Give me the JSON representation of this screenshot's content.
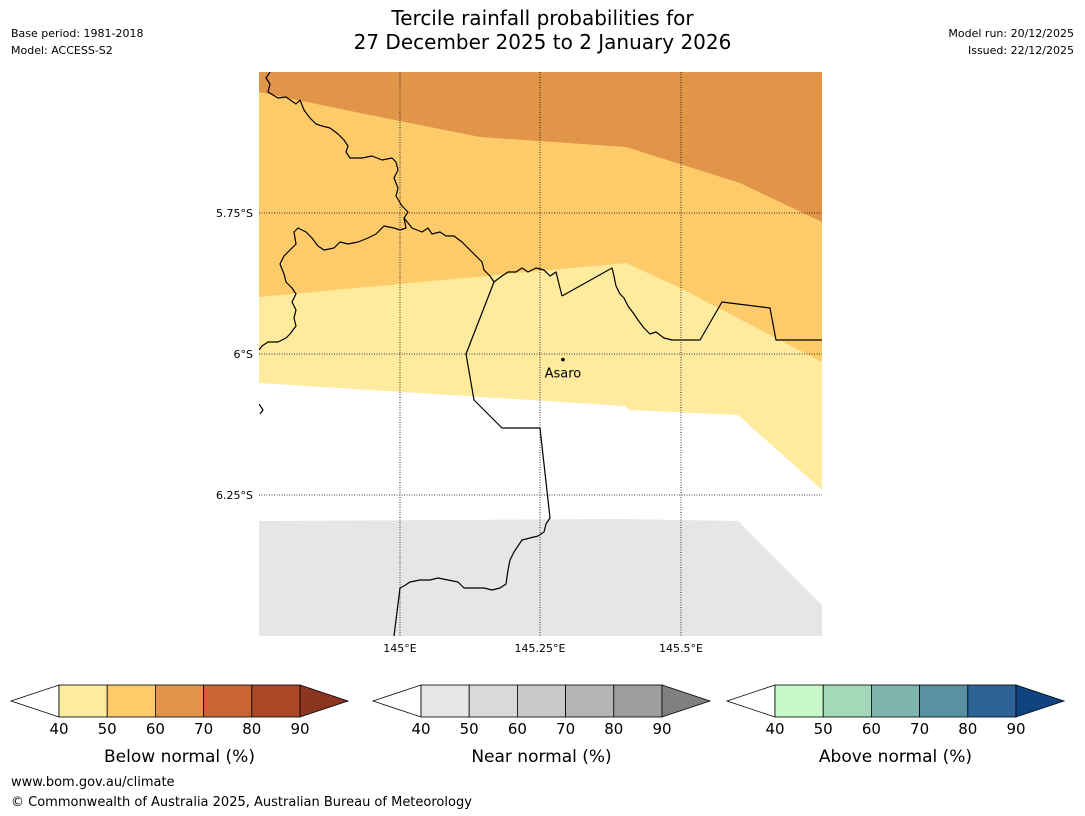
{
  "header": {
    "base_period": "Base period: 1981-2018",
    "model": "Model: ACCESS-S2",
    "title_line1": "Tercile rainfall probabilities for",
    "title_line2": "27 December 2025 to 2 January 2026",
    "model_run": "Model run: 20/12/2025",
    "issued": "Issued: 22/12/2025"
  },
  "map": {
    "lat_labels": [
      "5.75°S",
      "6°S",
      "6.25°S"
    ],
    "lon_labels": [
      "145°E",
      "145.25°E",
      "145.5°E"
    ],
    "place": {
      "name": "Asaro",
      "lat": -6.01,
      "lon": 145.29
    },
    "colors": {
      "below_70": "#e09548",
      "below_60": "#fecb6b",
      "below_50": "#feeb9e",
      "near_40": "#e6e6e6",
      "border": "#000000"
    }
  },
  "legends": [
    {
      "label": "Below normal (%)",
      "ticks": [
        "40",
        "50",
        "60",
        "70",
        "80",
        "90"
      ],
      "colors": [
        "#ffffff",
        "#feeb9e",
        "#fecb6b",
        "#e09548",
        "#cb6433",
        "#ab4627",
        "#8b3520"
      ]
    },
    {
      "label": "Near normal (%)",
      "ticks": [
        "40",
        "50",
        "60",
        "70",
        "80",
        "90"
      ],
      "colors": [
        "#ffffff",
        "#e6e6e6",
        "#d9d9d9",
        "#c8c8c8",
        "#b4b4b4",
        "#9e9e9e",
        "#808080"
      ]
    },
    {
      "label": "Above normal (%)",
      "ticks": [
        "40",
        "50",
        "60",
        "70",
        "80",
        "90"
      ],
      "colors": [
        "#ffffff",
        "#c7f9c9",
        "#a3d9b9",
        "#7eb5ae",
        "#5891a1",
        "#2d6396",
        "#0f4480"
      ]
    }
  ],
  "footer": {
    "url": "www.bom.gov.au/climate",
    "copyright": "© Commonwealth of Australia 2025, Australian Bureau of Meteorology"
  }
}
